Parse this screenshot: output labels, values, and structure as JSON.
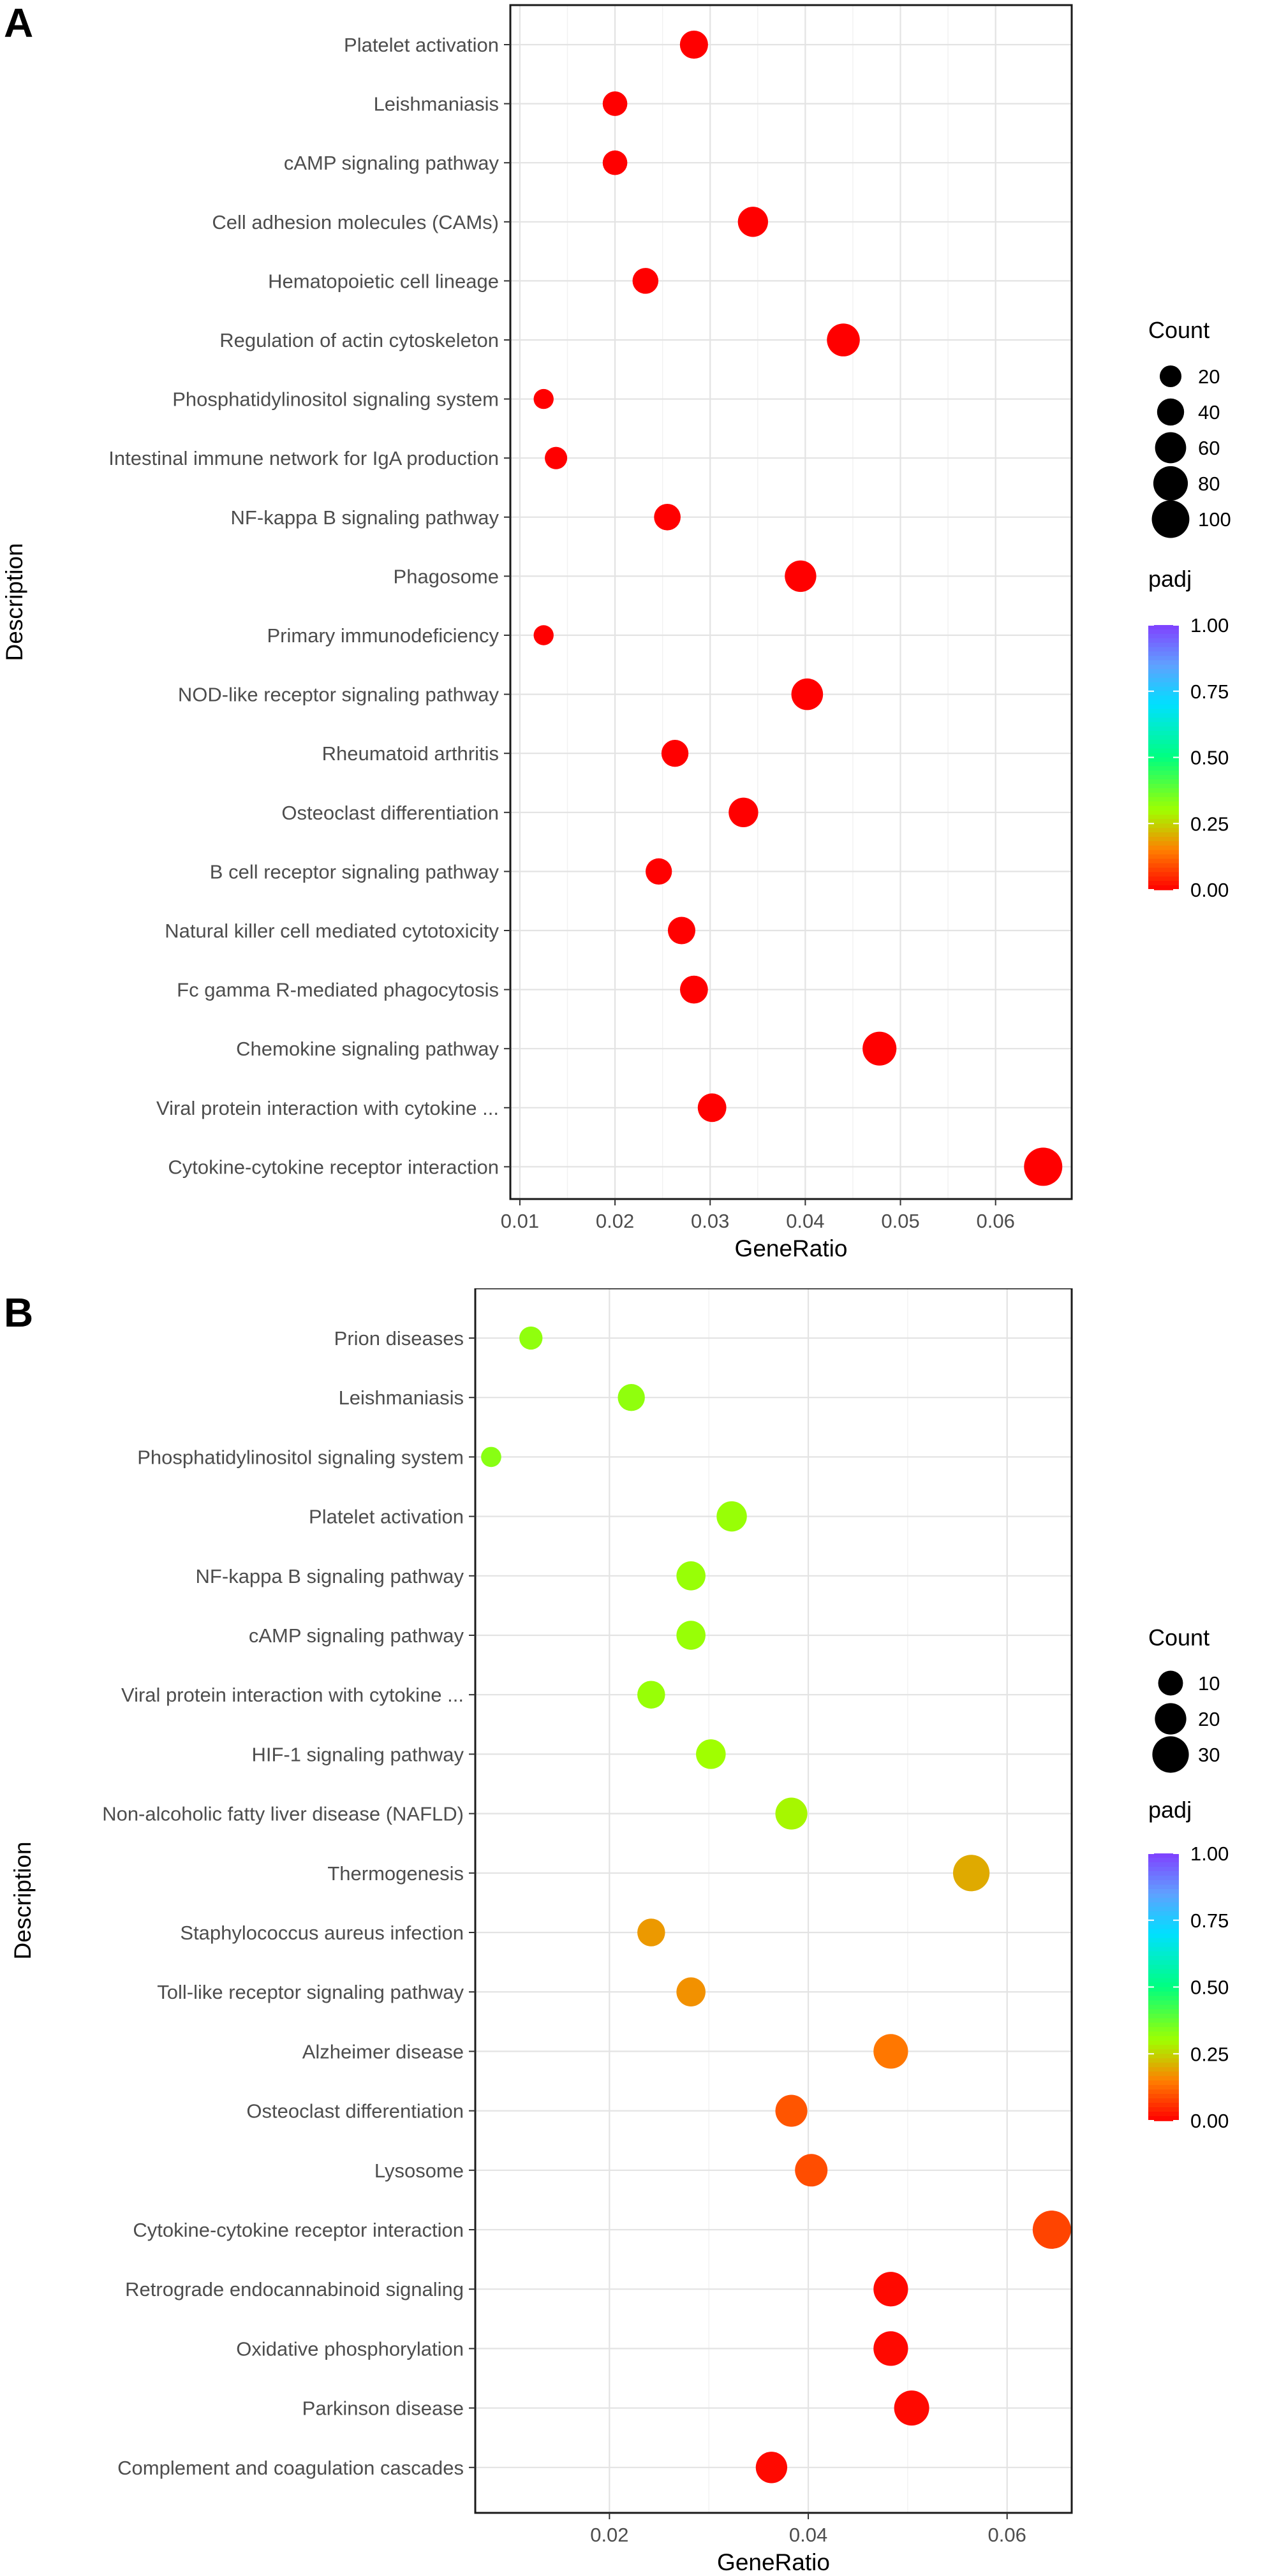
{
  "chart_data": [
    {
      "panel_letter": "A",
      "type": "scatter",
      "xlabel": "GeneRatio",
      "ylabel": "Description",
      "xlim": [
        0.009,
        0.068
      ],
      "xticks": [
        0.01,
        0.02,
        0.03,
        0.04,
        0.05,
        0.06
      ],
      "xtick_labels": [
        "0.01",
        "0.02",
        "0.03",
        "0.04",
        "0.05",
        "0.06"
      ],
      "points": [
        {
          "label": "Platelet activation",
          "x": 0.0283,
          "count": 45,
          "padj": 0.0
        },
        {
          "label": "Leishmaniasis",
          "x": 0.02,
          "count": 30,
          "padj": 0.0
        },
        {
          "label": "cAMP signaling pathway",
          "x": 0.02,
          "count": 30,
          "padj": 0.0
        },
        {
          "label": "Cell adhesion molecules (CAMs)",
          "x": 0.0345,
          "count": 55,
          "padj": 0.0
        },
        {
          "label": "Hematopoietic cell lineage",
          "x": 0.0232,
          "count": 35,
          "padj": 0.0
        },
        {
          "label": "Regulation of actin cytoskeleton",
          "x": 0.044,
          "count": 70,
          "padj": 0.0
        },
        {
          "label": "Phosphatidylinositol signaling system",
          "x": 0.0125,
          "count": 15,
          "padj": 0.0
        },
        {
          "label": "Intestinal immune network for IgA production",
          "x": 0.0138,
          "count": 22,
          "padj": 0.0
        },
        {
          "label": "NF-kappa B signaling pathway",
          "x": 0.0255,
          "count": 38,
          "padj": 0.0
        },
        {
          "label": "Phagosome",
          "x": 0.0395,
          "count": 62,
          "padj": 0.0
        },
        {
          "label": "Primary immunodeficiency",
          "x": 0.0125,
          "count": 15,
          "padj": 0.0
        },
        {
          "label": "NOD-like receptor signaling pathway",
          "x": 0.0402,
          "count": 63,
          "padj": 0.0
        },
        {
          "label": "Rheumatoid arthritis",
          "x": 0.0263,
          "count": 40,
          "padj": 0.0
        },
        {
          "label": "Osteoclast differentiation",
          "x": 0.0335,
          "count": 52,
          "padj": 0.0
        },
        {
          "label": "B cell receptor signaling pathway",
          "x": 0.0246,
          "count": 37,
          "padj": 0.0
        },
        {
          "label": "Natural killer cell mediated cytotoxicity",
          "x": 0.027,
          "count": 42,
          "padj": 0.0
        },
        {
          "label": "Fc gamma R-mediated phagocytosis",
          "x": 0.0283,
          "count": 44,
          "padj": 0.0
        },
        {
          "label": "Chemokine signaling pathway",
          "x": 0.0478,
          "count": 76,
          "padj": 0.0
        },
        {
          "label": "Viral protein interaction with cytokine ...",
          "x": 0.0302,
          "count": 47,
          "padj": 0.0
        },
        {
          "label": "Cytokine-cytokine receptor interaction",
          "x": 0.065,
          "count": 105,
          "padj": 0.0
        }
      ],
      "size_legend": {
        "title": "Count",
        "values": [
          20,
          40,
          60,
          80,
          100
        ],
        "labels": [
          "20",
          "40",
          "60",
          "80",
          "100"
        ],
        "max": 105
      },
      "color_legend": {
        "title": "padj",
        "ticks": [
          "1.00",
          "0.75",
          "0.50",
          "0.25",
          "0.00"
        ]
      }
    },
    {
      "panel_letter": "B",
      "type": "scatter",
      "xlabel": "GeneRatio",
      "ylabel": "Description",
      "xlim": [
        0.0065,
        0.0665
      ],
      "xticks": [
        0.02,
        0.04,
        0.06
      ],
      "xtick_labels": [
        "0.02",
        "0.04",
        "0.06"
      ],
      "points": [
        {
          "label": "Prion diseases",
          "x": 0.0121,
          "count": 8,
          "padj": 0.32
        },
        {
          "label": "Leishmaniasis",
          "x": 0.0222,
          "count": 13,
          "padj": 0.32
        },
        {
          "label": "Phosphatidylinositol signaling system",
          "x": 0.0081,
          "count": 5,
          "padj": 0.33
        },
        {
          "label": "Platelet activation",
          "x": 0.0323,
          "count": 18,
          "padj": 0.31
        },
        {
          "label": "NF-kappa B signaling pathway",
          "x": 0.0282,
          "count": 16,
          "padj": 0.31
        },
        {
          "label": "cAMP signaling pathway",
          "x": 0.0282,
          "count": 16,
          "padj": 0.31
        },
        {
          "label": "Viral protein interaction with cytokine ...",
          "x": 0.0242,
          "count": 14,
          "padj": 0.31
        },
        {
          "label": "HIF-1 signaling pathway",
          "x": 0.0302,
          "count": 17,
          "padj": 0.3
        },
        {
          "label": "Non-alcoholic fatty liver disease (NAFLD)",
          "x": 0.0383,
          "count": 21,
          "padj": 0.29
        },
        {
          "label": "Thermogenesis",
          "x": 0.0564,
          "count": 30,
          "padj": 0.2
        },
        {
          "label": "Staphylococcus aureus infection",
          "x": 0.0242,
          "count": 14,
          "padj": 0.18
        },
        {
          "label": "Toll-like receptor signaling pathway",
          "x": 0.0282,
          "count": 16,
          "padj": 0.17
        },
        {
          "label": "Alzheimer disease",
          "x": 0.0483,
          "count": 26,
          "padj": 0.14
        },
        {
          "label": "Osteoclast differentiation",
          "x": 0.0383,
          "count": 21,
          "padj": 0.1
        },
        {
          "label": "Lysosome",
          "x": 0.0403,
          "count": 22,
          "padj": 0.09
        },
        {
          "label": "Cytokine-cytokine receptor interaction",
          "x": 0.0645,
          "count": 34,
          "padj": 0.08
        },
        {
          "label": "Retrograde endocannabinoid signaling",
          "x": 0.0483,
          "count": 26,
          "padj": 0.01
        },
        {
          "label": "Oxidative phosphorylation",
          "x": 0.0483,
          "count": 26,
          "padj": 0.01
        },
        {
          "label": "Parkinson disease",
          "x": 0.0504,
          "count": 27,
          "padj": 0.01
        },
        {
          "label": "Complement and coagulation cascades",
          "x": 0.0363,
          "count": 20,
          "padj": 0.01
        }
      ],
      "size_legend": {
        "title": "Count",
        "values": [
          10,
          20,
          30
        ],
        "labels": [
          "10",
          "20",
          "30"
        ],
        "max": 34
      },
      "color_legend": {
        "title": "padj",
        "ticks": [
          "1.00",
          "0.75",
          "0.50",
          "0.25",
          "0.00"
        ]
      }
    }
  ]
}
